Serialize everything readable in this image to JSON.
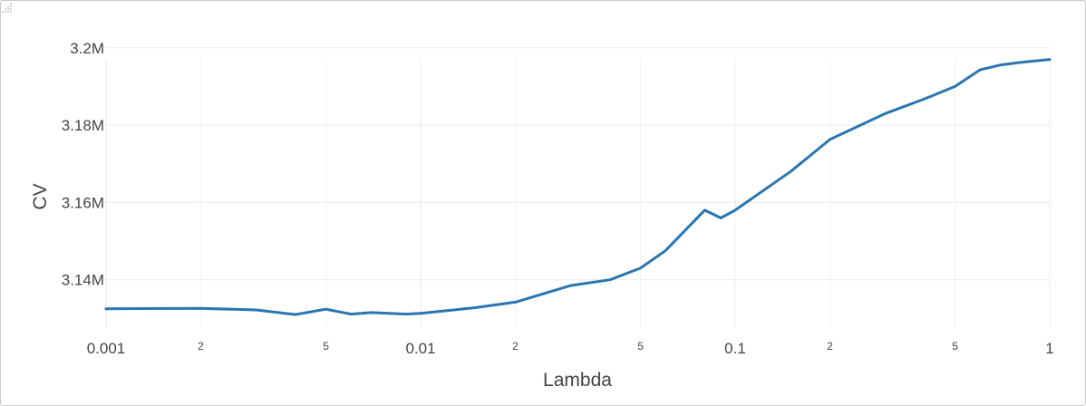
{
  "chart_data": {
    "type": "line",
    "xlabel": "Lambda",
    "ylabel": "CV",
    "x_scale": "log",
    "xlim": [
      0.001,
      1
    ],
    "ylim": [
      3127500,
      3203000
    ],
    "grid": true,
    "line_color": "#2b76b0",
    "x_ticks_major": [
      {
        "value": 0.001,
        "label": "0.001"
      },
      {
        "value": 0.01,
        "label": "0.01"
      },
      {
        "value": 0.1,
        "label": "0.1"
      },
      {
        "value": 1,
        "label": "1"
      }
    ],
    "x_ticks_minor": [
      {
        "value": 0.002,
        "label": "2"
      },
      {
        "value": 0.005,
        "label": "5"
      },
      {
        "value": 0.02,
        "label": "2"
      },
      {
        "value": 0.05,
        "label": "5"
      },
      {
        "value": 0.2,
        "label": "2"
      },
      {
        "value": 0.5,
        "label": "5"
      }
    ],
    "y_ticks": [
      {
        "value": 3140000,
        "label": "3.14M"
      },
      {
        "value": 3160000,
        "label": "3.16M"
      },
      {
        "value": 3180000,
        "label": "3.18M"
      },
      {
        "value": 3200000,
        "label": "3.2M"
      }
    ],
    "series": [
      {
        "x": [
          0.001,
          0.002,
          0.003,
          0.004,
          0.005,
          0.006,
          0.007,
          0.009,
          0.01,
          0.015,
          0.02,
          0.03,
          0.04,
          0.05,
          0.06,
          0.08,
          0.09,
          0.1,
          0.15,
          0.2,
          0.3,
          0.4,
          0.5,
          0.6,
          0.7,
          0.8,
          1.0
        ],
        "y": [
          3132500,
          3132600,
          3132200,
          3131000,
          3132400,
          3131100,
          3131500,
          3131100,
          3131300,
          3132800,
          3134200,
          3138500,
          3140000,
          3143000,
          3147500,
          3158000,
          3156000,
          3158000,
          3168000,
          3176300,
          3183000,
          3186800,
          3190000,
          3194300,
          3195600,
          3196200,
          3197000
        ]
      }
    ]
  }
}
